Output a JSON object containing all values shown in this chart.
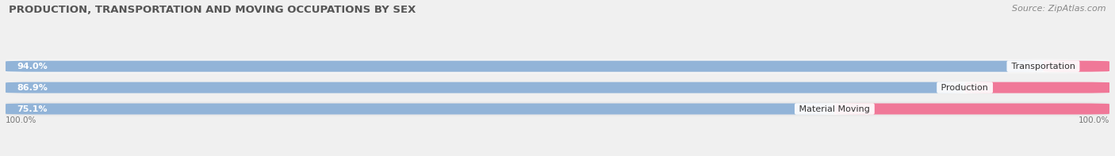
{
  "title": "PRODUCTION, TRANSPORTATION AND MOVING OCCUPATIONS BY SEX",
  "source": "Source: ZipAtlas.com",
  "categories": [
    "Transportation",
    "Production",
    "Material Moving"
  ],
  "male_values": [
    94.0,
    86.9,
    75.1
  ],
  "female_values": [
    6.0,
    13.2,
    24.9
  ],
  "male_color": "#92B4D8",
  "female_color": "#F07898",
  "title_fontsize": 9.5,
  "source_fontsize": 8,
  "label_fontsize": 8,
  "category_fontsize": 8,
  "axis_label_fontsize": 7.5,
  "bar_height": 0.52,
  "row_bg_colors": [
    "#f5f5f5",
    "#efefef",
    "#e9e9e9"
  ],
  "fig_bg_color": "#f0f0f0"
}
